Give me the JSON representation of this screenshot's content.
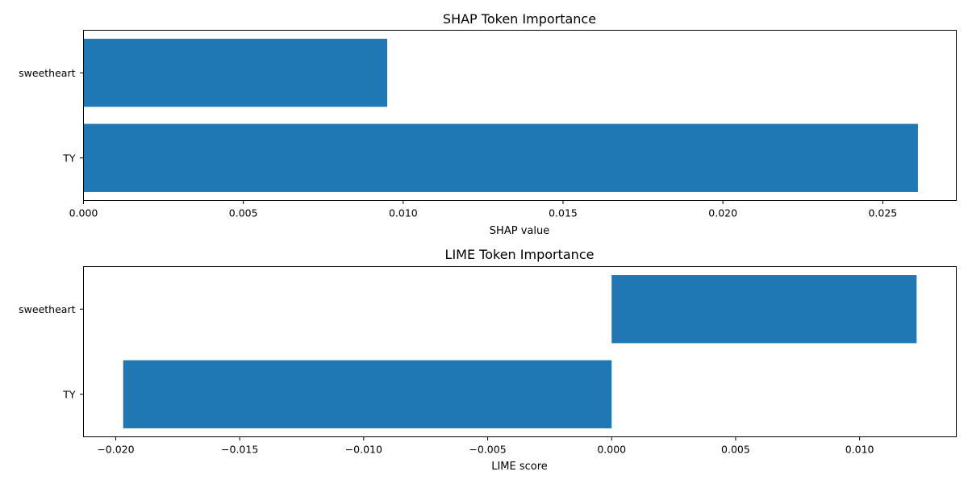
{
  "chart_data": [
    {
      "type": "bar",
      "orientation": "horizontal",
      "title": "SHAP Token Importance",
      "xlabel": "SHAP value",
      "ylabel": "",
      "categories": [
        "sweetheart",
        "TY"
      ],
      "values": [
        0.0095,
        0.0261
      ],
      "xlim": [
        0,
        0.0273
      ],
      "xticks": [
        0.0,
        0.005,
        0.01,
        0.015,
        0.02,
        0.025
      ],
      "xtick_labels": [
        "0.000",
        "0.005",
        "0.010",
        "0.015",
        "0.020",
        "0.025"
      ],
      "grid": false,
      "color": "#1f77b4"
    },
    {
      "type": "bar",
      "orientation": "horizontal",
      "title": "LIME Token Importance",
      "xlabel": "LIME score",
      "ylabel": "",
      "categories": [
        "sweetheart",
        "TY"
      ],
      "values": [
        0.0123,
        -0.0197
      ],
      "xlim": [
        -0.0213,
        0.0139
      ],
      "xticks": [
        -0.02,
        -0.015,
        -0.01,
        -0.005,
        0.0,
        0.005,
        0.01
      ],
      "xtick_labels": [
        "−0.020",
        "−0.015",
        "−0.010",
        "−0.005",
        "0.000",
        "0.005",
        "0.010"
      ],
      "grid": false,
      "color": "#1f77b4"
    }
  ]
}
